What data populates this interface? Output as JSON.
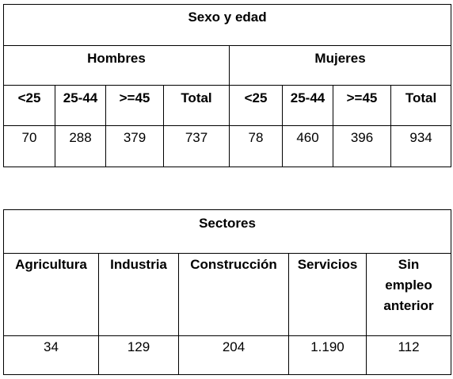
{
  "sexo_edad": {
    "title": "Sexo y edad",
    "groups": [
      "Hombres",
      "Mujeres"
    ],
    "headers": [
      "<25",
      "25-44",
      ">=45",
      "Total",
      "<25",
      "25-44",
      ">=45",
      "Total"
    ],
    "values": [
      "70",
      "288",
      "379",
      "737",
      "78",
      "460",
      "396",
      "934"
    ]
  },
  "sectores": {
    "title": "Sectores",
    "headers": [
      "Agricultura",
      "Industria",
      "Construcción",
      "Servicios",
      "Sin empleo anterior"
    ],
    "values": [
      "34",
      "129",
      "204",
      "1.190",
      "112"
    ]
  }
}
